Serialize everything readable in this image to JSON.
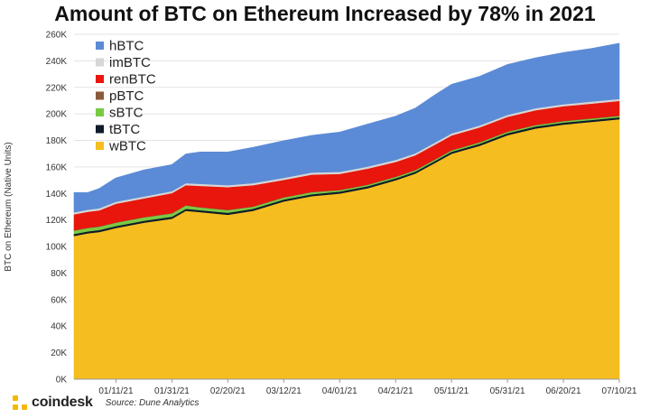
{
  "title": "Amount of BTC on Ethereum Increased by 78% in 2021",
  "brand": {
    "name": "coindesk",
    "logo_icon": "coindesk-logo-icon",
    "accent": "#f5b800"
  },
  "source": "Source: Dune Analytics",
  "chart_data": {
    "type": "area",
    "stacked": true,
    "title": "Amount of BTC on Ethereum Increased by 78% in 2021",
    "xlabel": "",
    "ylabel": "BTC on Ethereum (Native Units)",
    "ylim": [
      0,
      260000
    ],
    "yticks": [
      0,
      20000,
      40000,
      60000,
      80000,
      100000,
      120000,
      140000,
      160000,
      180000,
      200000,
      220000,
      240000,
      260000
    ],
    "ytick_labels": [
      "0K",
      "20K",
      "40K",
      "60K",
      "80K",
      "100K",
      "120K",
      "140K",
      "160K",
      "180K",
      "200K",
      "220K",
      "240K",
      "260K"
    ],
    "x_start": "2020-12-27",
    "x_end": "2021-07-10",
    "xticks": [
      "2021-01-11",
      "2021-01-31",
      "2021-02-20",
      "2021-03-12",
      "2021-04-01",
      "2021-04-21",
      "2021-05-11",
      "2021-05-31",
      "2021-06-20",
      "2021-07-10"
    ],
    "xtick_labels": [
      "01/11/21",
      "01/31/21",
      "02/20/21",
      "03/12/21",
      "04/01/21",
      "04/21/21",
      "05/11/21",
      "05/31/21",
      "06/20/21",
      "07/10/21"
    ],
    "legend_position": "top-left",
    "x": [
      "2020-12-27",
      "2021-01-01",
      "2021-01-05",
      "2021-01-11",
      "2021-01-21",
      "2021-01-31",
      "2021-02-05",
      "2021-02-10",
      "2021-02-20",
      "2021-03-01",
      "2021-03-12",
      "2021-03-22",
      "2021-04-01",
      "2021-04-11",
      "2021-04-21",
      "2021-04-28",
      "2021-05-05",
      "2021-05-11",
      "2021-05-21",
      "2021-05-31",
      "2021-06-10",
      "2021-06-20",
      "2021-06-30",
      "2021-07-10"
    ],
    "series": [
      {
        "name": "wBTC",
        "color": "#f5bd1f",
        "values": [
          108000,
          110000,
          111000,
          114000,
          118000,
          121000,
          127000,
          126000,
          124000,
          127000,
          134000,
          138000,
          140000,
          144000,
          150000,
          155000,
          163000,
          170000,
          176000,
          184000,
          189000,
          192000,
          194000,
          196000
        ]
      },
      {
        "name": "tBTC",
        "color": "#0d1b2a",
        "values": [
          1500,
          1500,
          1500,
          1500,
          1500,
          1500,
          1500,
          1500,
          1500,
          1500,
          1500,
          1500,
          1500,
          1500,
          1500,
          1500,
          1500,
          1500,
          1500,
          1500,
          1500,
          1500,
          1500,
          1500
        ]
      },
      {
        "name": "sBTC",
        "color": "#7ac943",
        "values": [
          2500,
          2500,
          2500,
          2500,
          2500,
          2500,
          2500,
          2000,
          2000,
          1500,
          1500,
          1500,
          1000,
          1000,
          1000,
          1000,
          1000,
          1000,
          1000,
          1000,
          1000,
          1000,
          1000,
          1000
        ]
      },
      {
        "name": "pBTC",
        "color": "#8b5a3c",
        "values": [
          300,
          300,
          300,
          300,
          300,
          300,
          300,
          300,
          300,
          300,
          300,
          300,
          300,
          300,
          300,
          300,
          300,
          300,
          300,
          300,
          300,
          300,
          300,
          300
        ]
      },
      {
        "name": "renBTC",
        "color": "#e8160c",
        "values": [
          12000,
          12000,
          12000,
          14000,
          14000,
          15000,
          15000,
          16000,
          17000,
          16000,
          13000,
          13000,
          12000,
          12000,
          11000,
          11000,
          11000,
          11000,
          11000,
          11000,
          11000,
          11000,
          11000,
          11000
        ]
      },
      {
        "name": "imBTC",
        "color": "#d6d6d6",
        "values": [
          1500,
          1500,
          1500,
          1500,
          1500,
          1500,
          1500,
          1500,
          1500,
          1500,
          1500,
          1500,
          1500,
          1500,
          1500,
          1500,
          1500,
          1500,
          1500,
          1500,
          1500,
          1500,
          1500,
          1500
        ]
      },
      {
        "name": "hBTC",
        "color": "#5b8bd6",
        "values": [
          15000,
          13000,
          15000,
          18000,
          20000,
          20000,
          22000,
          24000,
          25000,
          27000,
          28000,
          28000,
          30000,
          32000,
          33000,
          34000,
          36000,
          37000,
          37000,
          38000,
          38000,
          39000,
          40000,
          42000
        ]
      }
    ]
  }
}
